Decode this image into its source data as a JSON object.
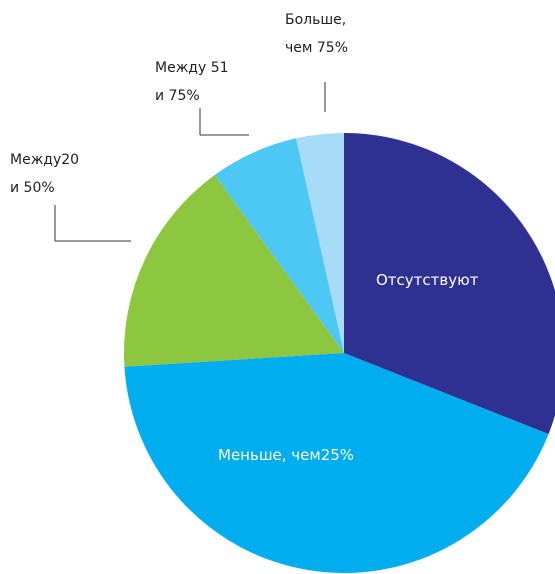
{
  "chart_data": {
    "type": "pie",
    "categories": [
      "Отсутствуют",
      "Меньше, чем25%",
      "Между20\nи 50%",
      "Между 51\nи 75%",
      "Больше,\nчем 75%"
    ],
    "values": [
      31,
      43,
      16,
      6.5,
      3.5
    ],
    "colors": [
      "#2e3192",
      "#00aeef",
      "#8dc63f",
      "#4dc8f5",
      "#a6dcf8"
    ]
  }
}
